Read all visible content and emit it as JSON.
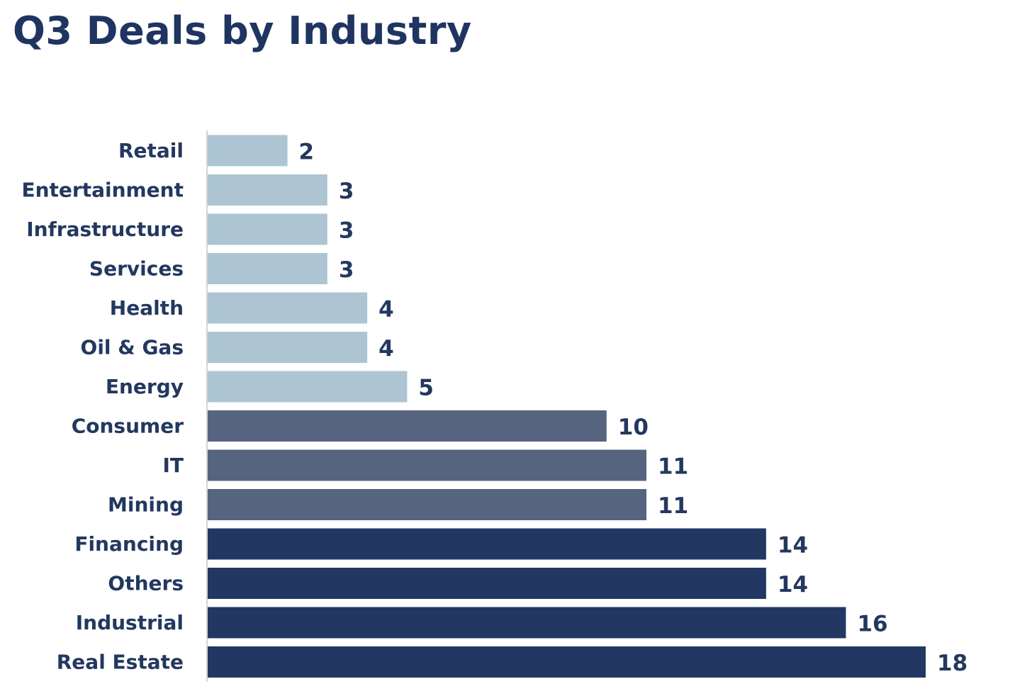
{
  "title": "Q3 Deals by Industry",
  "colors": {
    "title": "#1f3460",
    "labels": "#23385f",
    "axis": "#d4d4d4",
    "light": "#adc5d3",
    "medium": "#56647f",
    "dark": "#223863"
  },
  "chart_data": {
    "type": "bar",
    "orientation": "horizontal",
    "title": "Q3 Deals by Industry",
    "xlabel": "",
    "ylabel": "",
    "grid": false,
    "categories": [
      "Retail",
      "Entertainment",
      "Infrastructure",
      "Services",
      "Health",
      "Oil & Gas",
      "Energy",
      "Consumer",
      "IT",
      "Mining",
      "Financing",
      "Others",
      "Industrial",
      "Real Estate"
    ],
    "values": [
      2,
      3,
      3,
      3,
      4,
      4,
      5,
      10,
      11,
      11,
      14,
      14,
      16,
      18
    ],
    "bar_colors": [
      "light",
      "light",
      "light",
      "light",
      "light",
      "light",
      "light",
      "medium",
      "medium",
      "medium",
      "dark",
      "dark",
      "dark",
      "dark"
    ],
    "xlim": [
      0,
      18
    ]
  }
}
